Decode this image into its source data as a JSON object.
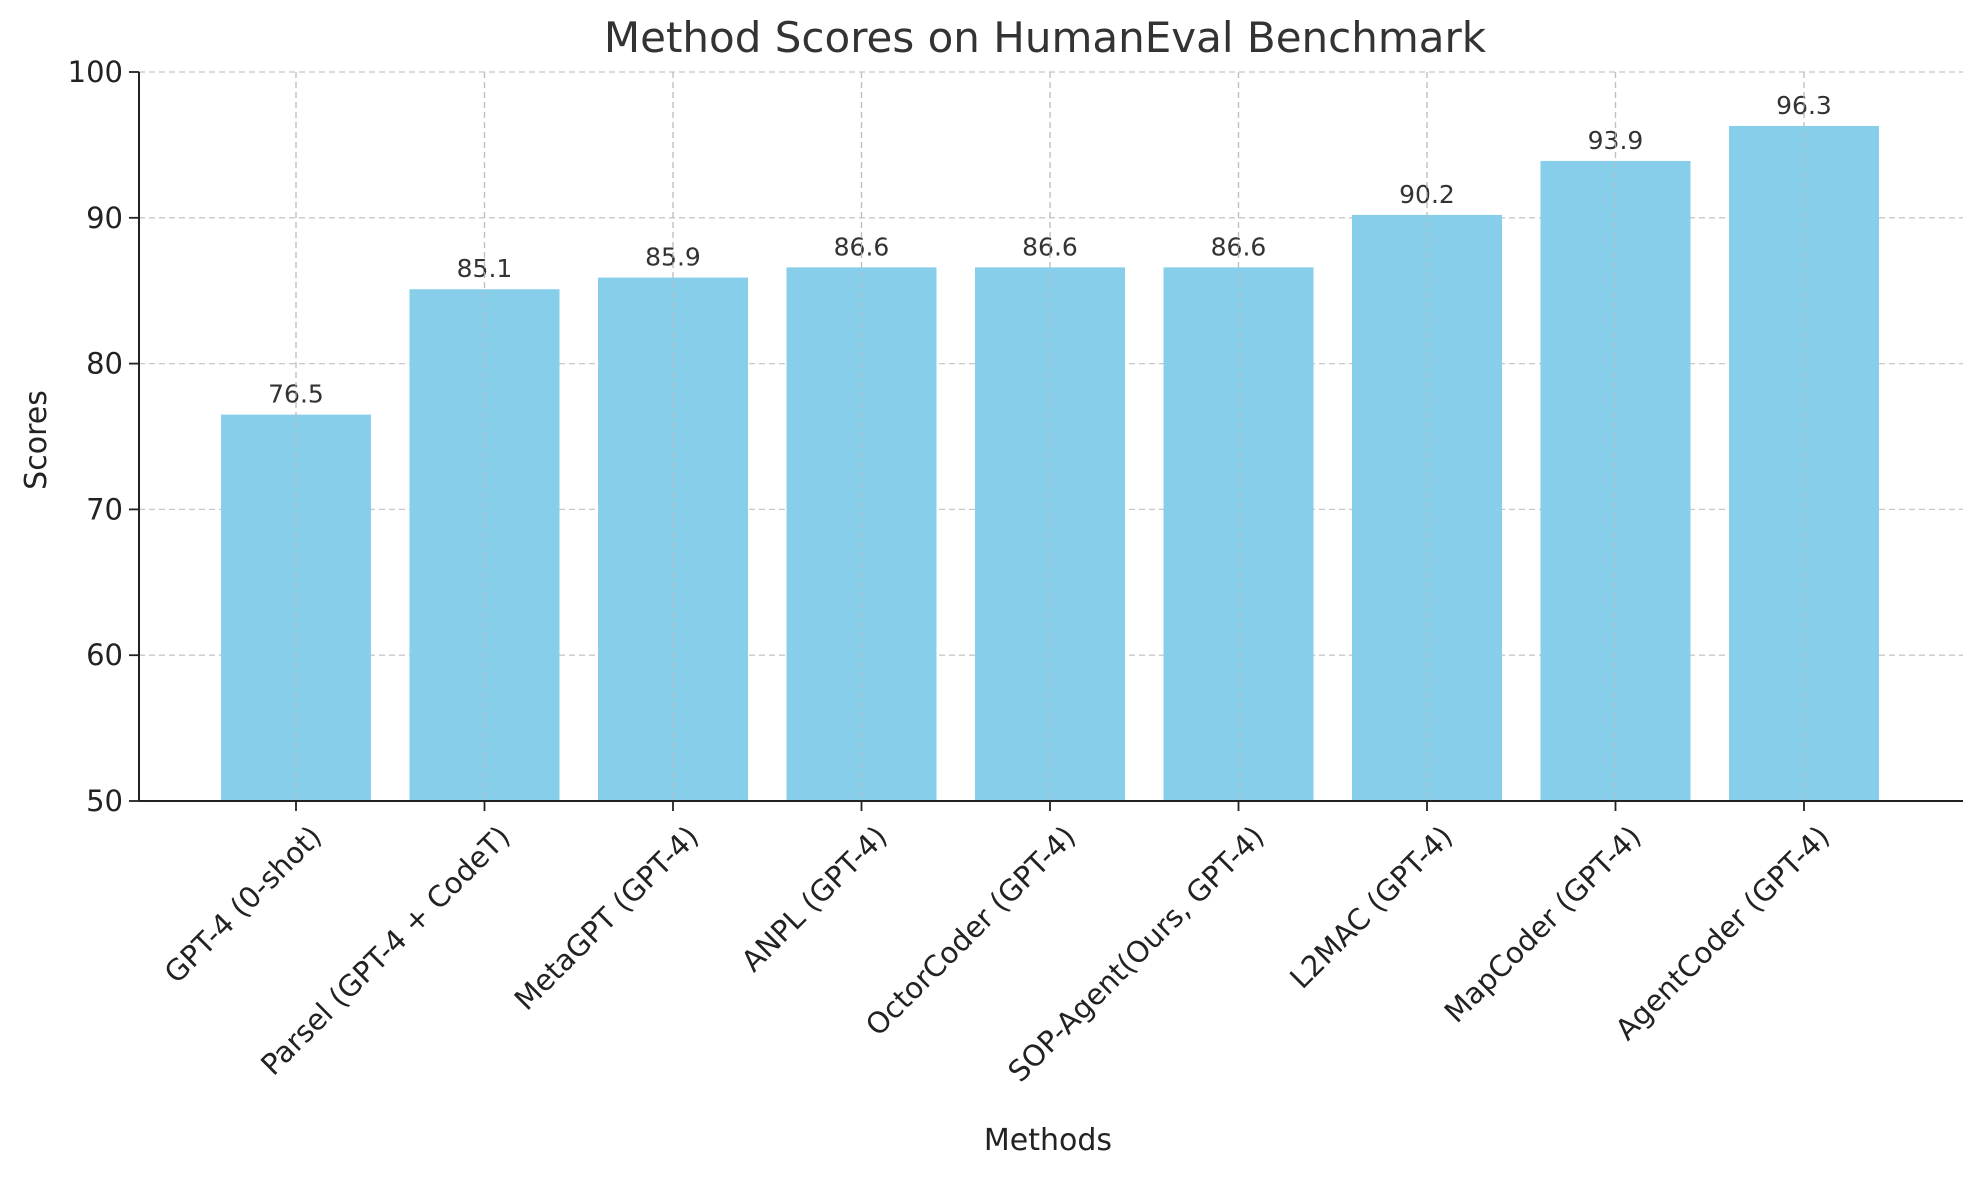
{
  "chart_data": {
    "type": "bar",
    "title": "Method Scores on HumanEval Benchmark",
    "xlabel": "Methods",
    "ylabel": "Scores",
    "categories": [
      "GPT-4 (0-shot)",
      "Parsel (GPT-4 + CodeT)",
      "MetaGPT (GPT-4)",
      "ANPL (GPT-4)",
      "OctorCoder (GPT-4)",
      "SOP-Agent(Ours, GPT-4)",
      "L2MAC (GPT-4)",
      "MapCoder (GPT-4)",
      "AgentCoder (GPT-4)"
    ],
    "values": [
      76.5,
      85.1,
      85.9,
      86.6,
      86.6,
      86.6,
      90.2,
      93.9,
      96.3
    ],
    "value_labels": [
      "76.5",
      "85.1",
      "85.9",
      "86.6",
      "86.6",
      "86.6",
      "90.2",
      "93.9",
      "96.3"
    ],
    "ylim": [
      50,
      100
    ],
    "yticks": [
      50,
      60,
      70,
      80,
      90,
      100
    ],
    "ytick_labels": [
      "50",
      "60",
      "70",
      "80",
      "90",
      "100"
    ],
    "grid": true,
    "bar_color": "#87CEEB"
  }
}
